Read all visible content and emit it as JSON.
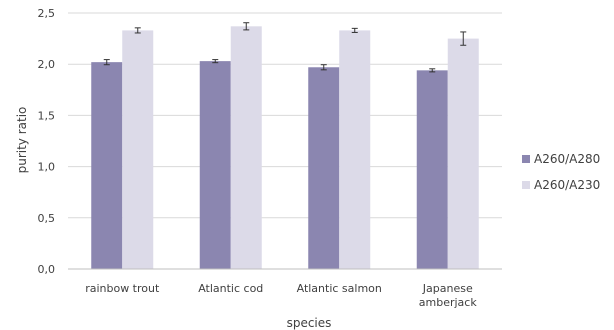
{
  "chart_data": {
    "type": "bar",
    "title": "",
    "xlabel": "species",
    "ylabel": "purity ratio",
    "ylim": [
      0,
      2.5
    ],
    "yticks": [
      "0,0",
      "0,5",
      "1,0",
      "1,5",
      "2,0",
      "2,5"
    ],
    "categories": [
      [
        "rainbow trout"
      ],
      [
        "Atlantic cod"
      ],
      [
        "Atlantic salmon"
      ],
      [
        "Japanese",
        "amberjack"
      ]
    ],
    "series": [
      {
        "name": "A260/A280",
        "color": "#8b86b0",
        "values": [
          2.02,
          2.03,
          1.97,
          1.94
        ],
        "errors": [
          0.025,
          0.015,
          0.025,
          0.015
        ]
      },
      {
        "name": "A260/A230",
        "color": "#dcdae8",
        "values": [
          2.33,
          2.37,
          2.33,
          2.25
        ],
        "errors": [
          0.025,
          0.035,
          0.02,
          0.065
        ]
      }
    ],
    "grid": true,
    "legend_position": "right"
  }
}
